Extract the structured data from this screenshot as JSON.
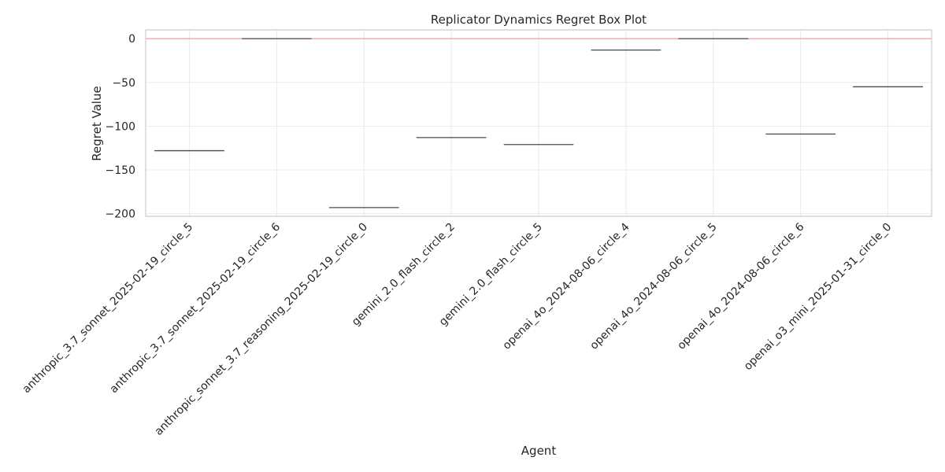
{
  "chart_data": {
    "type": "box",
    "title": "Replicator Dynamics Regret Box Plot",
    "xlabel": "Agent",
    "ylabel": "Regret Value",
    "ylim": [
      -203,
      10
    ],
    "yticks": [
      0,
      -50,
      -100,
      -150,
      -200
    ],
    "grid": true,
    "reference_line": {
      "y": 0,
      "color": "#e8a0a0"
    },
    "categories": [
      "anthropic_3.7_sonnet_2025-02-19_circle_5",
      "anthropic_3.7_sonnet_2025-02-19_circle_6",
      "anthropic_sonnet_3.7_reasoning_2025-02-19_circle_0",
      "gemini_2.0_flash_circle_2",
      "gemini_2.0_flash_circle_5",
      "openai_4o_2024-08-06_circle_4",
      "openai_4o_2024-08-06_circle_5",
      "openai_4o_2024-08-06_circle_6",
      "openai_o3_mini_2025-01-31_circle_0"
    ],
    "values": [
      -128,
      0,
      -193,
      -113,
      -121,
      -13,
      0,
      -109,
      -55
    ]
  }
}
